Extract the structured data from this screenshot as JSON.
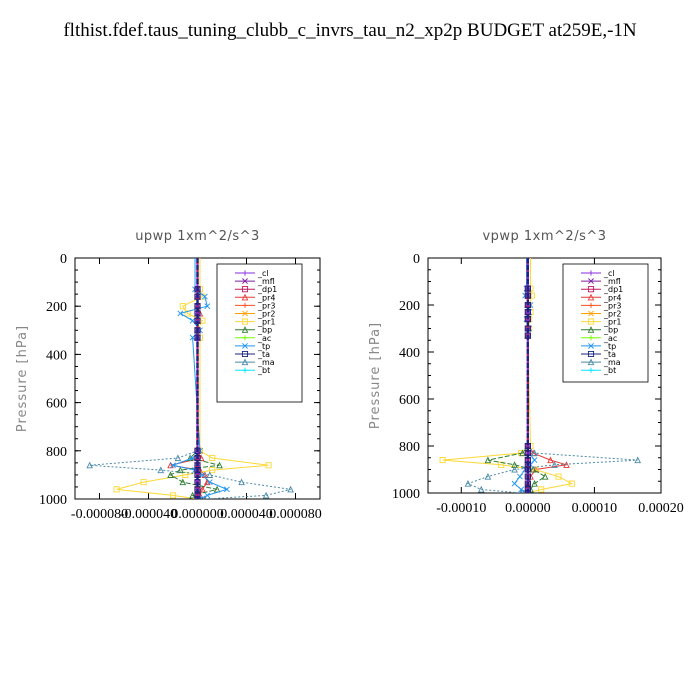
{
  "title": "flthist.fdef.taus_tuning_clubb_c_invrs_tau_n2_xp2p  BUDGET at259E,-1N",
  "chart_data": [
    {
      "type": "line",
      "title": "upwp   1xm^2/s^3",
      "ylabel": "Pressure  [hPa]",
      "ylim": [
        1000,
        0
      ],
      "xlim": [
        -0.0001,
        0.0001
      ],
      "xticks": [
        -8e-05,
        -4e-05,
        0.0,
        4e-05,
        8e-05
      ],
      "xtick_labels": [
        "-0.000080",
        "-0.000040",
        "0.000000",
        "0.000040",
        "0.000080"
      ],
      "yticks": [
        0,
        200,
        400,
        600,
        800,
        1000
      ],
      "ytick_labels": [
        "0",
        "200",
        "400",
        "600",
        "800",
        "1000"
      ],
      "legend_position": "top-right",
      "levels": [
        130,
        160,
        200,
        230,
        260,
        300,
        330,
        800,
        830,
        860,
        880,
        900,
        930,
        960,
        985,
        1000
      ],
      "series": [
        {
          "name": "_cl",
          "color": "#8a2be2",
          "values": [
            0,
            0,
            0,
            0,
            0,
            0,
            0,
            0,
            0,
            0,
            0,
            0,
            0,
            0,
            0,
            0
          ]
        },
        {
          "name": "_mfl",
          "color": "#7b1fa2",
          "values": [
            0,
            0,
            0,
            0,
            0,
            0,
            0,
            0,
            0,
            0,
            0,
            0,
            0,
            0,
            0,
            0
          ]
        },
        {
          "name": "_dp1",
          "color": "#c2185b",
          "values": [
            0,
            0,
            0,
            0,
            0,
            0,
            0,
            0,
            0,
            0,
            0,
            0,
            0,
            0,
            0,
            0
          ]
        },
        {
          "name": "_pr4",
          "color": "#e53935",
          "values": [
            0,
            0,
            0,
            2e-06,
            0,
            0,
            0,
            0,
            3e-06,
            -2.2e-05,
            2e-06,
            6e-06,
            8e-06,
            4e-06,
            2e-06,
            0
          ]
        },
        {
          "name": "_pr3",
          "color": "#f4511e",
          "values": [
            0,
            0,
            0,
            0,
            0,
            0,
            0,
            0,
            0,
            0,
            0,
            0,
            0,
            0,
            0,
            0
          ]
        },
        {
          "name": "_pr2",
          "color": "#ffa000",
          "values": [
            0,
            0,
            0,
            0,
            0,
            0,
            0,
            0,
            0,
            0,
            0,
            0,
            0,
            0,
            0,
            0
          ]
        },
        {
          "name": "_pr1",
          "color": "#fdd835",
          "values": [
            2e-06,
            4e-06,
            -1.2e-05,
            -8e-06,
            4e-06,
            0,
            2e-06,
            2e-06,
            1.2e-05,
            5.8e-05,
            1.2e-05,
            -1e-05,
            -4.4e-05,
            -6.6e-05,
            -2e-05,
            0
          ]
        },
        {
          "name": "_bp",
          "color": "#2e7d32",
          "values": [
            0,
            0,
            0,
            0,
            0,
            0,
            0,
            0,
            -6e-06,
            1.8e-05,
            -1.4e-05,
            -2.2e-05,
            -1.2e-05,
            1.6e-05,
            -4e-06,
            0
          ]
        },
        {
          "name": "_ac",
          "color": "#76ff03",
          "values": [
            0,
            0,
            0,
            0,
            0,
            0,
            0,
            0,
            0,
            0,
            0,
            0,
            0,
            0,
            0,
            0
          ]
        },
        {
          "name": "_tp",
          "color": "#2196f3",
          "values": [
            -2e-06,
            6e-06,
            8e-06,
            -1.4e-05,
            -4e-06,
            2e-06,
            -4e-06,
            2e-06,
            -4e-06,
            -2e-05,
            -2e-06,
            4e-06,
            1e-05,
            2.4e-05,
            8e-06,
            2e-06
          ]
        },
        {
          "name": "_ta",
          "color": "#1a237e",
          "values": [
            0,
            0,
            0,
            0,
            0,
            0,
            0,
            0,
            0,
            0,
            0,
            0,
            0,
            0,
            0,
            0
          ]
        },
        {
          "name": "_ma",
          "color": "#4a8aa8",
          "values": [
            0,
            0,
            0,
            0,
            0,
            0,
            0,
            0,
            -1.6e-05,
            -8.8e-05,
            -3e-05,
            1e-05,
            3.6e-05,
            7.6e-05,
            5.6e-05,
            6e-06
          ]
        },
        {
          "name": "_bt",
          "color": "#00e5ff",
          "values": [
            0,
            0,
            0,
            0,
            0,
            0,
            0,
            0,
            0,
            0,
            0,
            0,
            0,
            0,
            0,
            0
          ]
        }
      ]
    },
    {
      "type": "line",
      "title": "vpwp   1xm^2/s^3",
      "ylabel": "Pressure  [hPa]",
      "ylim": [
        1000,
        0
      ],
      "xlim": [
        -0.00015,
        0.0002
      ],
      "xticks": [
        -0.0001,
        0.0,
        0.0001,
        0.0002
      ],
      "xtick_labels": [
        "-0.00010",
        "0.00000",
        "0.00010",
        "0.00020"
      ],
      "yticks": [
        0,
        200,
        400,
        600,
        800,
        1000
      ],
      "ytick_labels": [
        "0",
        "200",
        "400",
        "600",
        "800",
        "1000"
      ],
      "legend_position": "top-right",
      "levels": [
        130,
        160,
        200,
        230,
        260,
        300,
        330,
        800,
        830,
        860,
        880,
        900,
        930,
        960,
        985,
        1000
      ],
      "series": [
        {
          "name": "_cl",
          "color": "#8a2be2",
          "values": [
            0,
            0,
            0,
            0,
            0,
            0,
            0,
            0,
            0,
            0,
            0,
            0,
            0,
            0,
            0,
            0
          ]
        },
        {
          "name": "_mfl",
          "color": "#7b1fa2",
          "values": [
            0,
            0,
            0,
            0,
            0,
            0,
            0,
            0,
            0,
            0,
            0,
            0,
            0,
            0,
            0,
            0
          ]
        },
        {
          "name": "_dp1",
          "color": "#c2185b",
          "values": [
            0,
            0,
            0,
            0,
            0,
            0,
            0,
            0,
            0,
            0,
            0,
            0,
            0,
            0,
            0,
            0
          ]
        },
        {
          "name": "_pr4",
          "color": "#e53935",
          "values": [
            0,
            0,
            0,
            0,
            0,
            0,
            0,
            0,
            8e-06,
            3.4e-05,
            5.8e-05,
            1.2e-05,
            4e-06,
            0,
            0,
            0
          ]
        },
        {
          "name": "_pr3",
          "color": "#f4511e",
          "values": [
            0,
            0,
            0,
            0,
            0,
            0,
            0,
            0,
            0,
            0,
            0,
            0,
            0,
            0,
            0,
            0
          ]
        },
        {
          "name": "_pr2",
          "color": "#ffa000",
          "values": [
            0,
            0,
            0,
            0,
            0,
            0,
            0,
            0,
            0,
            0,
            0,
            0,
            0,
            0,
            0,
            0
          ]
        },
        {
          "name": "_pr1",
          "color": "#fdd835",
          "values": [
            4e-06,
            6e-06,
            2e-06,
            4e-06,
            2e-06,
            2e-06,
            0,
            4e-06,
            -1e-05,
            -0.000128,
            -4e-05,
            1e-05,
            4.6e-05,
            6.6e-05,
            2e-05,
            0
          ]
        },
        {
          "name": "_bp",
          "color": "#2e7d32",
          "values": [
            0,
            0,
            0,
            0,
            0,
            0,
            0,
            0,
            -8e-06,
            -6e-05,
            -2e-05,
            8e-06,
            2.6e-05,
            1e-05,
            4e-06,
            0
          ]
        },
        {
          "name": "_ac",
          "color": "#76ff03",
          "values": [
            0,
            0,
            0,
            0,
            0,
            0,
            0,
            0,
            0,
            0,
            0,
            0,
            0,
            0,
            0,
            0
          ]
        },
        {
          "name": "_tp",
          "color": "#2196f3",
          "values": [
            -2e-06,
            -4e-06,
            4e-06,
            2e-06,
            -2e-06,
            2e-06,
            0,
            0,
            2e-06,
            1e-05,
            4e-06,
            -4e-06,
            -1.2e-05,
            -2e-05,
            -1e-05,
            0
          ]
        },
        {
          "name": "_ta",
          "color": "#1a237e",
          "values": [
            0,
            0,
            0,
            0,
            0,
            0,
            0,
            0,
            0,
            0,
            0,
            0,
            0,
            0,
            0,
            0
          ]
        },
        {
          "name": "_ma",
          "color": "#4a8aa8",
          "values": [
            0,
            0,
            0,
            0,
            0,
            0,
            0,
            0,
            1e-05,
            0.000165,
            4e-05,
            -2e-05,
            -6e-05,
            -9e-05,
            -7e-05,
            -1e-05
          ]
        },
        {
          "name": "_bt",
          "color": "#00e5ff",
          "values": [
            0,
            0,
            0,
            0,
            0,
            0,
            0,
            0,
            0,
            0,
            0,
            0,
            0,
            0,
            0,
            0
          ]
        }
      ]
    }
  ]
}
